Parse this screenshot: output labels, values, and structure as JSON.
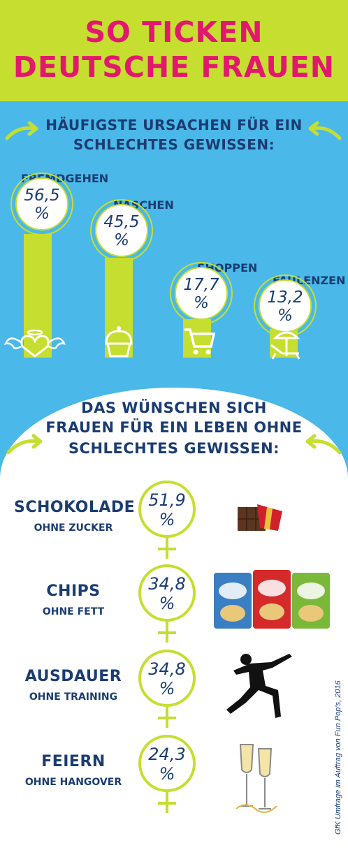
{
  "header": {
    "title_line1": "SO TICKEN",
    "title_line2": "DEUTSCHE FRAUEN",
    "bg_color": "#c6de2f",
    "title_color": "#e2186e"
  },
  "section1": {
    "title_line1": "HÄUFIGSTE URSACHEN FÜR EIN",
    "title_line2": "SCHLECHTES GEWISSEN:"
  },
  "section2": {
    "title_line1": "DAS WÜNSCHEN SICH",
    "title_line2": "FRAUEN FÜR EIN LEBEN OHNE",
    "title_line3": "SCHLECHTES GEWISSEN:"
  },
  "chart_data": [
    {
      "type": "bar",
      "categories": [
        "FREMDGEHEN",
        "NASCHEN",
        "SHOPPEN",
        "FAULENZEN"
      ],
      "values": [
        56.5,
        45.5,
        17.7,
        13.2
      ],
      "labels": [
        "56,5 %",
        "45,5 %",
        "17,7 %",
        "13,2 %"
      ],
      "icons": [
        "angel-heart-icon",
        "cupcake-icon",
        "shopping-cart-icon",
        "beach-chair-icon"
      ],
      "ylim": [
        0,
        60
      ]
    },
    {
      "type": "table",
      "items": [
        {
          "title": "SCHOKOLADE",
          "subtitle": "OHNE ZUCKER",
          "value": 51.9,
          "label": "51,9 %",
          "icon": "chocolate-bar-icon"
        },
        {
          "title": "CHIPS",
          "subtitle": "OHNE FETT",
          "value": 34.8,
          "label": "34,8 %",
          "icon": "chips-bags-icon"
        },
        {
          "title": "AUSDAUER",
          "subtitle": "OHNE TRAINING",
          "value": 34.8,
          "label": "34,8 %",
          "icon": "runner-icon"
        },
        {
          "title": "FEIERN",
          "subtitle": "OHNE HANGOVER",
          "value": 24.3,
          "label": "24,3 %",
          "icon": "champagne-glasses-icon"
        }
      ]
    }
  ],
  "source_note": "GfK Umfrage im Auftrag von Fun Pop's, 2016",
  "colors": {
    "blue": "#4ab8e8",
    "navy": "#1b3c72",
    "lime": "#c6de2f"
  }
}
